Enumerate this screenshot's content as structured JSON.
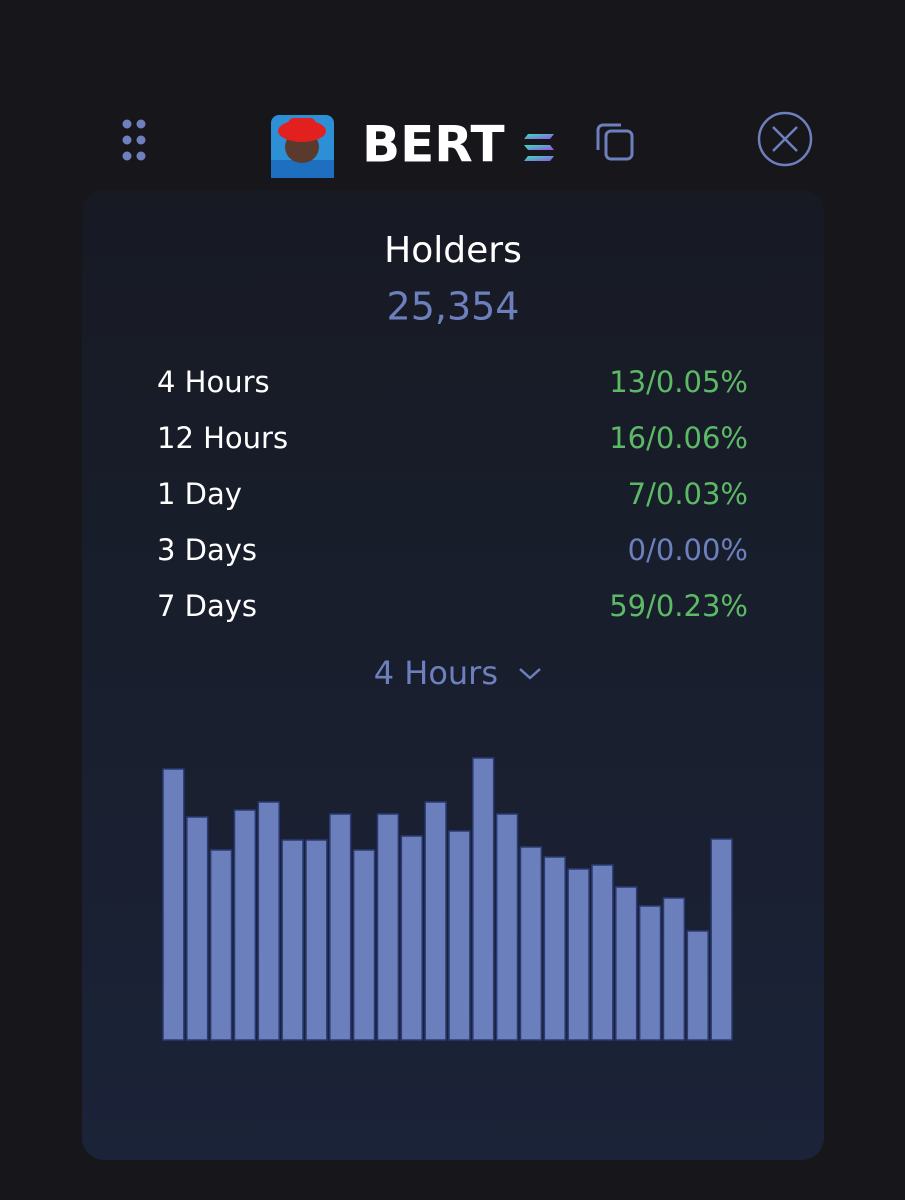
{
  "header": {
    "name": "BERT"
  },
  "holders": {
    "title": "Holders",
    "total": "25,354",
    "rows": [
      {
        "label": "4 Hours",
        "value": "13/0.05%",
        "color": "#5cba67"
      },
      {
        "label": "12 Hours",
        "value": "16/0.06%",
        "color": "#5cba67"
      },
      {
        "label": "1 Day",
        "value": "7/0.03%",
        "color": "#5cba67"
      },
      {
        "label": "3 Days",
        "value": "0/0.00%",
        "color": "#6d80bd"
      },
      {
        "label": "7 Days",
        "value": "59/0.23%",
        "color": "#5cba67"
      }
    ]
  },
  "selector": {
    "label": "4 Hours"
  },
  "chart_data": {
    "type": "bar",
    "color": "#6b7fbd",
    "values": [
      271,
      223,
      190,
      230,
      238,
      200,
      200,
      226,
      190,
      226,
      204,
      238,
      209,
      282,
      226,
      193,
      183,
      171,
      175,
      153,
      134,
      142,
      109,
      201
    ],
    "ylim": [
      0,
      282
    ]
  }
}
